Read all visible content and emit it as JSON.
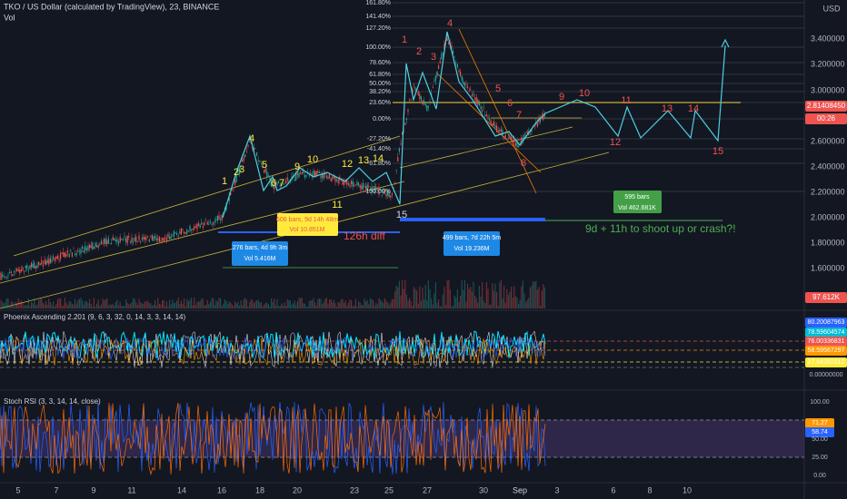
{
  "header": {
    "symbol": "TKO / US Dollar (calculated by TradingView), 23, BINANCE",
    "volume": "Vol",
    "currency": "USD"
  },
  "price_axis": [
    "3.400000",
    "3.200000",
    "3.000000",
    "2.600000",
    "2.400000",
    "2.200000",
    "2.000000",
    "1.800000",
    "1.600000"
  ],
  "price_badges": {
    "last": "2.81408450",
    "countdown": "00:26",
    "volume": "97.612K"
  },
  "fib_levels": [
    "161.80%",
    "141.40%",
    "127.20%",
    "100.00%",
    "78.60%",
    "61.80%",
    "50.00%",
    "38.20%",
    "23.60%",
    "0.00%",
    "-27.20%",
    "-41.40%",
    "-61.80%",
    "-100.00%"
  ],
  "yellow_waves": [
    "1",
    "2",
    "3",
    "4",
    "5",
    "6",
    "7",
    "9",
    "10",
    "11",
    "12",
    "13",
    "14",
    "15"
  ],
  "red_waves": [
    "1",
    "2",
    "3",
    "4",
    "5",
    "6",
    "7",
    "8",
    "9",
    "10",
    "11",
    "12",
    "13",
    "14",
    "15"
  ],
  "annotations": {
    "box1": [
      "606 bars, 9d 14h 48m",
      "Vol 10.851M"
    ],
    "box2": [
      "276 bars, 4d 9h 3m",
      "Vol 5.416M"
    ],
    "diff": "126h diff",
    "box3": [
      "499 bars, 7d 22h 5m",
      "Vol 19.236M"
    ],
    "box4": [
      "595 bars",
      "Vol 462.681K"
    ],
    "question": "9d + 11h to shoot up or crash?!"
  },
  "phoenix": {
    "title": "Phoenix Ascending 2.201 (9, 6, 3, 32, 0, 14, 3, 3, 14, 14)",
    "labels": [
      "80.20087963",
      "78.59604574",
      "76.00336831",
      "58.59567297",
      "27.64281012",
      "0.00000000"
    ]
  },
  "stoch": {
    "title": "Stoch RSI (3, 3, 14, 14, close)",
    "labels": [
      "100.00",
      "71.27",
      "58.74",
      "50.00",
      "25.00",
      "0.00"
    ]
  },
  "time_axis": [
    "5",
    "7",
    "9",
    "11",
    "14",
    "16",
    "18",
    "20",
    "23",
    "25",
    "27",
    "30",
    "Sep",
    "3",
    "6",
    "8",
    "10"
  ]
}
